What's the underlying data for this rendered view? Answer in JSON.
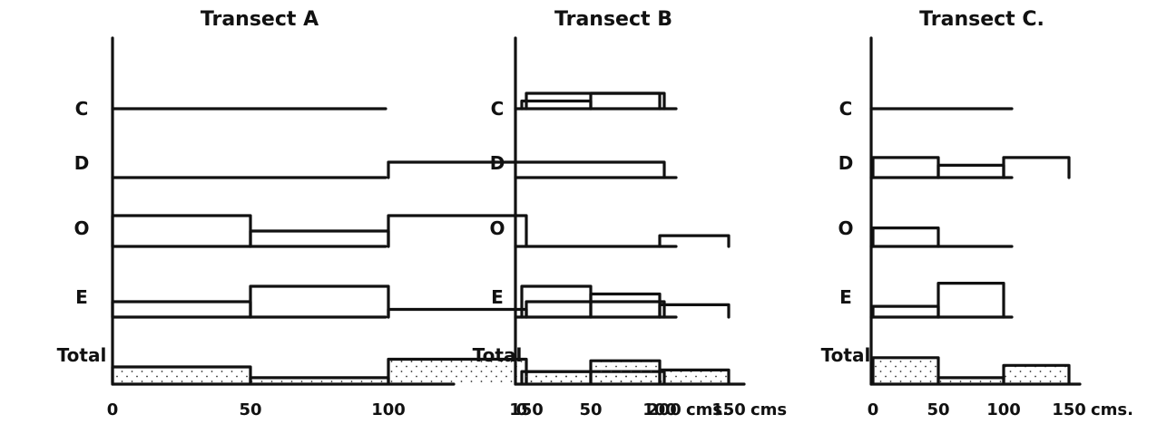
{
  "chart_data": [
    {
      "type": "area",
      "title": "Transect A",
      "x_unit": "cms.",
      "x_ticks": [
        "0",
        "50",
        "100",
        "150",
        "200"
      ],
      "x_max": 200,
      "rows": [
        {
          "label": "C",
          "segments": [
            {
              "x0": 150,
              "x1": 200,
              "level": 1
            }
          ]
        },
        {
          "label": "D",
          "segments": [
            {
              "x0": 100,
              "x1": 200,
              "level": 1
            }
          ]
        },
        {
          "label": "O",
          "segments": [
            {
              "x0": 0,
              "x1": 50,
              "level": 2
            },
            {
              "x0": 50,
              "x1": 100,
              "level": 1
            },
            {
              "x0": 100,
              "x1": 150,
              "level": 2
            }
          ]
        },
        {
          "label": "E",
          "segments": [
            {
              "x0": 0,
              "x1": 50,
              "level": 1
            },
            {
              "x0": 50,
              "x1": 100,
              "level": 2
            },
            {
              "x0": 100,
              "x1": 150,
              "level": 0.5
            },
            {
              "x0": 150,
              "x1": 200,
              "level": 1
            }
          ]
        },
        {
          "label": "Total",
          "segments": [
            {
              "x0": 0,
              "x1": 50,
              "level": 1
            },
            {
              "x0": 50,
              "x1": 100,
              "level": 0.3
            },
            {
              "x0": 100,
              "x1": 150,
              "level": 1.5
            },
            {
              "x0": 150,
              "x1": 200,
              "level": 0.7
            }
          ]
        }
      ]
    },
    {
      "type": "area",
      "title": "Transect B",
      "x_unit": "cms",
      "x_ticks": [
        "0",
        "50",
        "100",
        "150"
      ],
      "x_max": 150,
      "rows": [
        {
          "label": "C",
          "segments": [
            {
              "x0": 0,
              "x1": 50,
              "level": 0.5
            },
            {
              "x0": 50,
              "x1": 100,
              "level": 1
            }
          ]
        },
        {
          "label": "D",
          "segments": []
        },
        {
          "label": "O",
          "segments": [
            {
              "x0": 100,
              "x1": 150,
              "level": 0.7
            }
          ]
        },
        {
          "label": "E",
          "segments": [
            {
              "x0": 0,
              "x1": 50,
              "level": 2
            },
            {
              "x0": 50,
              "x1": 100,
              "level": 1.5
            },
            {
              "x0": 100,
              "x1": 150,
              "level": 0.8
            }
          ]
        },
        {
          "label": "Total",
          "segments": [
            {
              "x0": 0,
              "x1": 50,
              "level": 0.7
            },
            {
              "x0": 50,
              "x1": 100,
              "level": 1.4
            },
            {
              "x0": 100,
              "x1": 150,
              "level": 0.8
            }
          ]
        }
      ]
    },
    {
      "type": "area",
      "title": "Transect C.",
      "x_unit": "cms.",
      "x_ticks": [
        "0",
        "50",
        "100",
        "150"
      ],
      "x_max": 150,
      "rows": [
        {
          "label": "C",
          "segments": []
        },
        {
          "label": "D",
          "segments": [
            {
              "x0": 0,
              "x1": 50,
              "level": 1.3
            },
            {
              "x0": 50,
              "x1": 100,
              "level": 0.8
            },
            {
              "x0": 100,
              "x1": 150,
              "level": 1.3
            }
          ]
        },
        {
          "label": "O",
          "segments": [
            {
              "x0": 0,
              "x1": 50,
              "level": 1.2
            }
          ]
        },
        {
          "label": "E",
          "segments": [
            {
              "x0": 0,
              "x1": 50,
              "level": 0.7
            },
            {
              "x0": 50,
              "x1": 100,
              "level": 2.2
            }
          ]
        },
        {
          "label": "Total",
          "segments": [
            {
              "x0": 0,
              "x1": 50,
              "level": 1.6
            },
            {
              "x0": 50,
              "x1": 100,
              "level": 0.3
            },
            {
              "x0": 100,
              "x1": 150,
              "level": 1.1
            }
          ]
        }
      ]
    }
  ]
}
